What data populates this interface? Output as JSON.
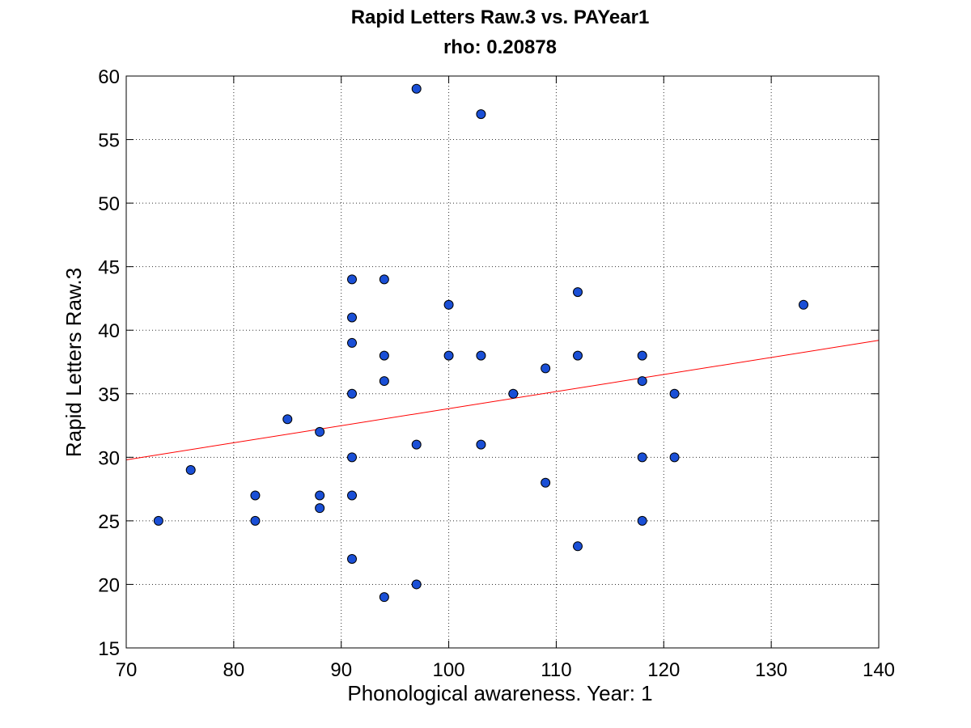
{
  "chart_data": {
    "type": "scatter",
    "title": "Rapid Letters Raw.3 vs. PAYear1",
    "subtitle": "rho: 0.20878",
    "xlabel": "Phonological awareness. Year: 1",
    "ylabel": "Rapid Letters Raw.3",
    "xlim": [
      70,
      140
    ],
    "ylim": [
      15,
      60
    ],
    "xticks": [
      70,
      80,
      90,
      100,
      110,
      120,
      130,
      140
    ],
    "yticks": [
      15,
      20,
      25,
      30,
      35,
      40,
      45,
      50,
      55,
      60
    ],
    "grid": true,
    "legend": "none",
    "point_color": "#1a4fd6",
    "fit_line_color": "#ff0000",
    "series": [
      {
        "x": [
          73,
          76,
          82,
          82,
          85,
          88,
          88,
          88,
          91,
          91,
          91,
          91,
          91,
          91,
          91,
          94,
          94,
          94,
          94,
          97,
          97,
          97,
          100,
          100,
          103,
          103,
          103,
          106,
          109,
          109,
          112,
          112,
          112,
          118,
          118,
          118,
          118,
          121,
          121,
          133
        ],
        "y": [
          25,
          29,
          27,
          25,
          33,
          32,
          27,
          26,
          44,
          41,
          39,
          35,
          30,
          27,
          22,
          44,
          38,
          36,
          19,
          59,
          31,
          20,
          42,
          38,
          57,
          38,
          31,
          35,
          37,
          28,
          43,
          38,
          23,
          38,
          36,
          30,
          25,
          35,
          30,
          42
        ]
      }
    ],
    "fit_line": {
      "x": [
        70,
        140
      ],
      "y": [
        29.8,
        39.2
      ]
    }
  }
}
